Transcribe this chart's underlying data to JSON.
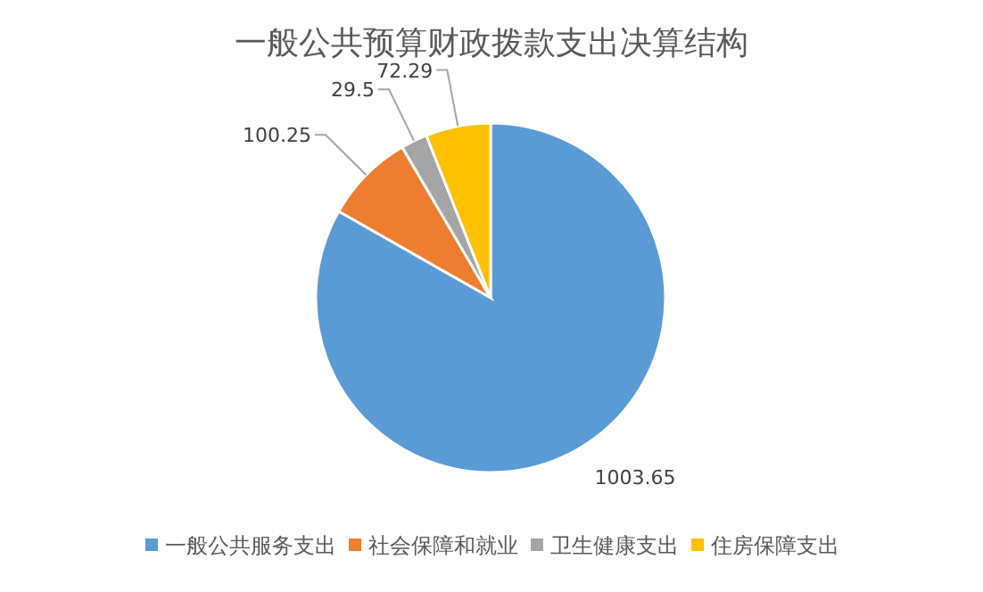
{
  "chart_data": {
    "type": "pie",
    "title": "一般公共预算财政拨款支出决算结构",
    "categories": [
      "一般公共服务支出",
      "社会保障和就业",
      "卫生健康支出",
      "住房保障支出"
    ],
    "values": [
      1003.65,
      100.25,
      29.5,
      72.29
    ],
    "colors": [
      "#5b9bd5",
      "#ed7d31",
      "#a5a5a5",
      "#ffc000"
    ],
    "data_labels": true,
    "legend": "bottom"
  }
}
